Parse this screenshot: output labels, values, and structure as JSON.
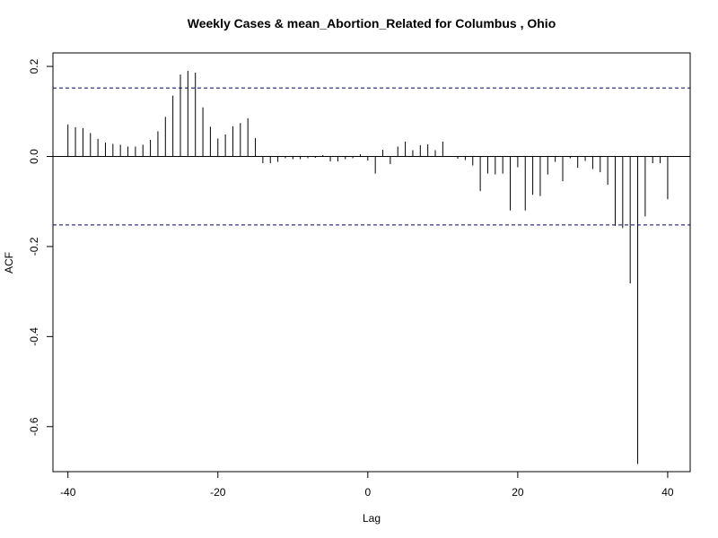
{
  "chart_data": {
    "type": "bar",
    "title": "Weekly Cases & mean_Abortion_Related for Columbus , Ohio",
    "xlabel": "Lag",
    "ylabel": "ACF",
    "xlim": [
      -42,
      43
    ],
    "ylim": [
      -0.7,
      0.23
    ],
    "x_ticks": [
      -40,
      -20,
      0,
      20,
      40
    ],
    "x_tick_labels": [
      "-40",
      "-20",
      "0",
      "20",
      "40"
    ],
    "y_ticks": [
      0.2,
      0.0,
      -0.2,
      -0.4,
      -0.6
    ],
    "y_tick_labels": [
      "0.2",
      "0.0",
      "-0.2",
      "-0.4",
      "-0.6"
    ],
    "confidence_bounds": [
      0.152,
      -0.152
    ],
    "grid": false,
    "x": [
      -40,
      -39,
      -38,
      -37,
      -36,
      -35,
      -34,
      -33,
      -32,
      -31,
      -30,
      -29,
      -28,
      -27,
      -26,
      -25,
      -24,
      -23,
      -22,
      -21,
      -20,
      -19,
      -18,
      -17,
      -16,
      -15,
      -14,
      -13,
      -12,
      -11,
      -10,
      -9,
      -8,
      -7,
      -6,
      -5,
      -4,
      -3,
      -2,
      -1,
      0,
      1,
      2,
      3,
      4,
      5,
      6,
      7,
      8,
      9,
      10,
      11,
      12,
      13,
      14,
      15,
      16,
      17,
      18,
      19,
      20,
      21,
      22,
      23,
      24,
      25,
      26,
      27,
      28,
      29,
      30,
      31,
      32,
      33,
      34,
      35,
      36,
      37,
      38,
      39,
      40
    ],
    "values": [
      0.071,
      0.065,
      0.063,
      0.052,
      0.039,
      0.031,
      0.028,
      0.026,
      0.022,
      0.022,
      0.026,
      0.037,
      0.056,
      0.088,
      0.135,
      0.182,
      0.19,
      0.186,
      0.109,
      0.066,
      0.04,
      0.049,
      0.067,
      0.074,
      0.085,
      0.041,
      -0.015,
      -0.015,
      -0.012,
      -0.004,
      -0.006,
      -0.006,
      -0.004,
      -0.003,
      0.003,
      -0.011,
      -0.011,
      -0.006,
      -0.004,
      0.005,
      -0.009,
      -0.038,
      0.015,
      -0.017,
      0.022,
      0.033,
      0.014,
      0.025,
      0.027,
      0.014,
      0.033,
      0.0,
      -0.005,
      -0.008,
      -0.02,
      -0.077,
      -0.038,
      -0.04,
      -0.038,
      -0.12,
      -0.024,
      -0.12,
      -0.085,
      -0.088,
      -0.04,
      -0.012,
      -0.055,
      -0.004,
      -0.025,
      -0.01,
      -0.028,
      -0.035,
      -0.063,
      -0.154,
      -0.159,
      -0.282,
      -0.683,
      -0.133,
      -0.015,
      -0.015,
      -0.095
    ]
  }
}
